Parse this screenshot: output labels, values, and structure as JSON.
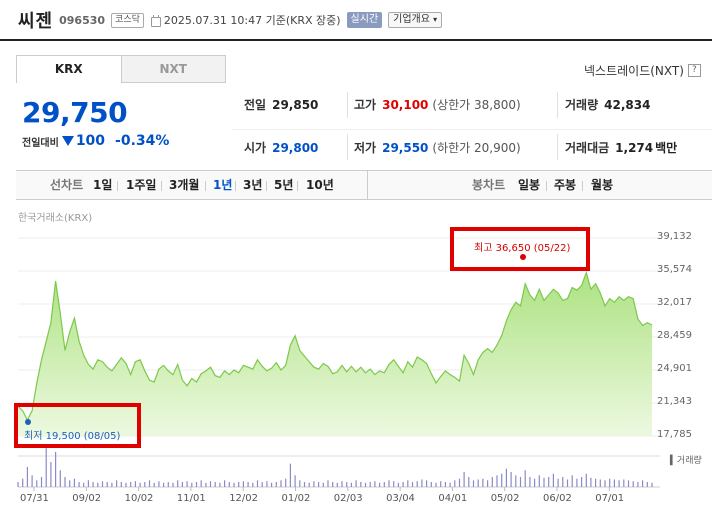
{
  "header": {
    "stock_name": "씨젠",
    "stock_code": "096530",
    "market_badge": "코스닥",
    "datetime": "2025.07.31 10:47 기준(KRX 장중)",
    "realtime_badge": "실시간",
    "company_button": "기업개요"
  },
  "market_tabs": [
    {
      "label": "KRX",
      "active": true
    },
    {
      "label": "NXT",
      "active": false
    }
  ],
  "nxt_link": {
    "label": "넥스트레이드(NXT)",
    "help": "?"
  },
  "price": {
    "current": "29,750",
    "change_label": "전일대비",
    "change_value": "100",
    "change_pct": "-0.34%"
  },
  "stats": {
    "prev_close": {
      "label": "전일",
      "value": "29,850"
    },
    "high": {
      "label": "고가",
      "value": "30,100",
      "sub": "(상한가 38,800)"
    },
    "volume": {
      "label": "거래량",
      "value": "42,834"
    },
    "open": {
      "label": "시가",
      "value": "29,800"
    },
    "low": {
      "label": "저가",
      "value": "29,550",
      "sub": "(하한가 20,900)"
    },
    "amount": {
      "label": "거래대금",
      "value": "1,274",
      "unit": "백만"
    }
  },
  "toolbar": {
    "line_chart_label": "선차트",
    "periods": [
      "1일",
      "1주일",
      "3개월",
      "1년",
      "3년",
      "5년",
      "10년"
    ],
    "active_period": "1년",
    "candle_label": "봉차트",
    "candle_periods": [
      "일봉",
      "주봉",
      "월봉"
    ]
  },
  "chart_data": {
    "type": "area",
    "source_label": "한국거래소(KRX)",
    "y_ticks": [
      "39,132",
      "35,574",
      "32,017",
      "28,459",
      "24,901",
      "21,343",
      "17,785"
    ],
    "ylim": [
      17785,
      39132
    ],
    "x_ticks": [
      "07/31",
      "09/02",
      "10/02",
      "11/01",
      "12/02",
      "01/02",
      "02/03",
      "03/04",
      "04/01",
      "05/02",
      "06/02",
      "07/01"
    ],
    "high_annotation": "최고 36,650 (05/22)",
    "low_annotation": "최저 19,500 (08/05)",
    "volume_label": "거래량",
    "values": [
      21000,
      20500,
      19500,
      20500,
      23500,
      26000,
      28000,
      30000,
      34500,
      31000,
      27000,
      29000,
      30500,
      28000,
      26500,
      25500,
      25000,
      26000,
      25800,
      25200,
      24800,
      25500,
      26200,
      25600,
      24400,
      25800,
      26000,
      24800,
      23800,
      23600,
      25000,
      25400,
      24800,
      24400,
      25500,
      23800,
      23200,
      24000,
      23600,
      24500,
      24800,
      25200,
      24300,
      24100,
      24800,
      24400,
      24900,
      24600,
      25400,
      25200,
      25000,
      26000,
      25300,
      24800,
      25100,
      25700,
      24900,
      25400,
      27600,
      28600,
      27000,
      26400,
      25800,
      25200,
      25000,
      25600,
      25300,
      24500,
      24700,
      25400,
      24700,
      25300,
      24700,
      25200,
      24600,
      25000,
      24400,
      24800,
      24600,
      25500,
      26000,
      25300,
      24600,
      25800,
      25200,
      26300,
      26000,
      25600,
      24500,
      23500,
      24200,
      24800,
      24400,
      24100,
      23700,
      26500,
      25600,
      24400,
      26000,
      26800,
      27200,
      26800,
      27600,
      28600,
      30200,
      31400,
      32200,
      31800,
      34200,
      33000,
      32400,
      33600,
      32400,
      33000,
      33600,
      33200,
      32400,
      32600,
      33800,
      33500,
      34000,
      35400,
      33600,
      34200,
      33200,
      31800,
      32600,
      32200,
      32800,
      32400,
      32800,
      32600,
      30400,
      29700,
      30000,
      29750
    ],
    "volumes": [
      6,
      10,
      24,
      14,
      8,
      12,
      48,
      30,
      42,
      20,
      12,
      8,
      10,
      6,
      5,
      8,
      6,
      5,
      7,
      6,
      5,
      8,
      6,
      5,
      6,
      7,
      5,
      6,
      8,
      5,
      7,
      5,
      6,
      5,
      8,
      6,
      7,
      5,
      6,
      8,
      5,
      7,
      6,
      5,
      8,
      6,
      5,
      6,
      7,
      6,
      5,
      8,
      6,
      7,
      5,
      6,
      8,
      10,
      28,
      14,
      8,
      6,
      5,
      7,
      6,
      5,
      8,
      6,
      5,
      7,
      6,
      5,
      8,
      6,
      5,
      6,
      7,
      5,
      6,
      8,
      7,
      5,
      6,
      8,
      6,
      7,
      9,
      8,
      6,
      5,
      7,
      6,
      5,
      8,
      10,
      18,
      12,
      8,
      9,
      10,
      8,
      12,
      14,
      16,
      22,
      18,
      14,
      12,
      20,
      12,
      10,
      14,
      11,
      12,
      16,
      10,
      12,
      9,
      14,
      10,
      12,
      16,
      11,
      10,
      9,
      8,
      10,
      9,
      8,
      9,
      8,
      7,
      6,
      8,
      6,
      5
    ]
  }
}
